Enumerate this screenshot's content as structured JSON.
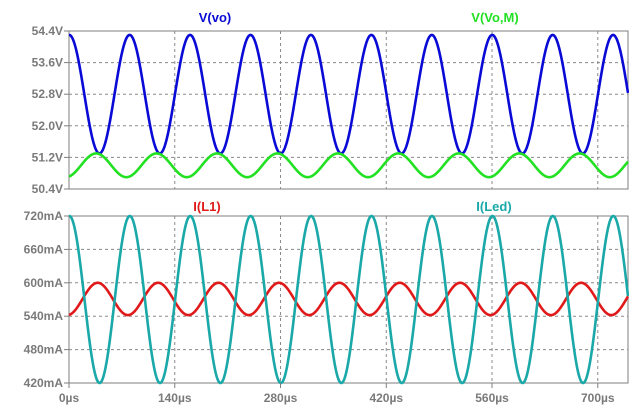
{
  "chart_data": [
    {
      "type": "line",
      "ylim": [
        50.4,
        54.4
      ],
      "yticks": [
        "54.4V",
        "53.6V",
        "52.8V",
        "52.0V",
        "51.2V",
        "50.4V"
      ],
      "ytick_values": [
        54.4,
        53.6,
        52.8,
        52.0,
        51.2,
        50.4
      ],
      "xlim": [
        0,
        740
      ],
      "series": [
        {
          "name": "V(vo)",
          "color": "#0a0ad6",
          "shape": "sine",
          "offset": 52.8,
          "amplitude": 1.5,
          "period_us": 80,
          "phase": 1.55,
          "x_start_us": 0
        },
        {
          "name": "V(Vo,M)",
          "color": "#22e022",
          "shape": "sine",
          "offset": 51.0,
          "amplitude": 0.3,
          "period_us": 80,
          "phase": -1.25,
          "x_start_us": 0
        }
      ]
    },
    {
      "type": "line",
      "ylim": [
        420,
        720
      ],
      "yticks": [
        "720mA",
        "660mA",
        "600mA",
        "540mA",
        "480mA",
        "420mA"
      ],
      "ytick_values": [
        720,
        660,
        600,
        540,
        480,
        420
      ],
      "xlim": [
        0,
        740
      ],
      "xticks": [
        "0µs",
        "140µs",
        "280µs",
        "420µs",
        "560µs",
        "700µs"
      ],
      "xtick_values": [
        0,
        140,
        280,
        420,
        560,
        700
      ],
      "series": [
        {
          "name": "I(L1)",
          "color": "#e01a1a",
          "shape": "sine",
          "offset": 571,
          "amplitude": 29,
          "period_us": 80,
          "phase": -1.41,
          "x_start_us": 0
        },
        {
          "name": "I(Led)",
          "color": "#1aa8a8",
          "shape": "sine",
          "offset": 570,
          "amplitude": 150,
          "period_us": 80,
          "phase": 1.53,
          "x_start_us": 0
        }
      ]
    }
  ]
}
